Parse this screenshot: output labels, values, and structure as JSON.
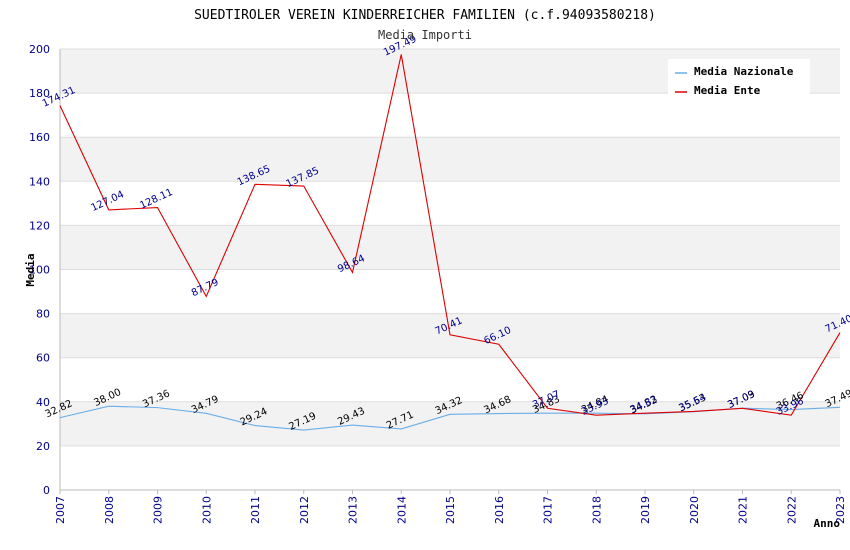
{
  "chart_data": {
    "type": "line",
    "title": "SUEDTIROLER VEREIN KINDERREICHER FAMILIEN (c.f.94093580218)",
    "subtitle": "Media Importi",
    "xlabel": "Anno",
    "ylabel": "Media",
    "ylim": [
      0,
      200
    ],
    "yticks": [
      "0",
      "20",
      "40",
      "60",
      "80",
      "100",
      "120",
      "140",
      "160",
      "180",
      "200"
    ],
    "x": [
      "2007",
      "2008",
      "2009",
      "2010",
      "2011",
      "2012",
      "2013",
      "2014",
      "2015",
      "2016",
      "2017",
      "2018",
      "2019",
      "2020",
      "2021",
      "2022",
      "2023"
    ],
    "legend_position": "top-right",
    "series": [
      {
        "name": "Media Nazionale",
        "color": "#6aaee8",
        "label_color": "#000000",
        "values": [
          32.82,
          38.0,
          37.36,
          34.79,
          29.24,
          27.19,
          29.43,
          27.71,
          34.32,
          34.68,
          34.83,
          34.84,
          34.52,
          35.53,
          37.09,
          36.46,
          37.49
        ],
        "labels": [
          "32.82",
          "38.00",
          "37.36",
          "34.79",
          "29.24",
          "27.19",
          "29.43",
          "27.71",
          "34.32",
          "34.68",
          "34.83",
          "34.84",
          "34.52",
          "35.53",
          "37.09",
          "36.46",
          "37.49"
        ]
      },
      {
        "name": "Media Ente",
        "color": "#dd0000",
        "label_color": "#00008b",
        "values": [
          174.31,
          127.04,
          128.11,
          87.79,
          138.65,
          137.85,
          98.64,
          197.49,
          70.41,
          66.1,
          37.07,
          33.93,
          34.83,
          35.64,
          37.03,
          33.96,
          71.4
        ],
        "labels": [
          "174.31",
          "127.04",
          "128.11",
          "87.79",
          "138.65",
          "137.85",
          "98.64",
          "197.49",
          "70.41",
          "66.10",
          "37.07",
          "33.93",
          "34.83",
          "35.64",
          "37.03",
          "33.96",
          "71.40"
        ]
      }
    ]
  }
}
